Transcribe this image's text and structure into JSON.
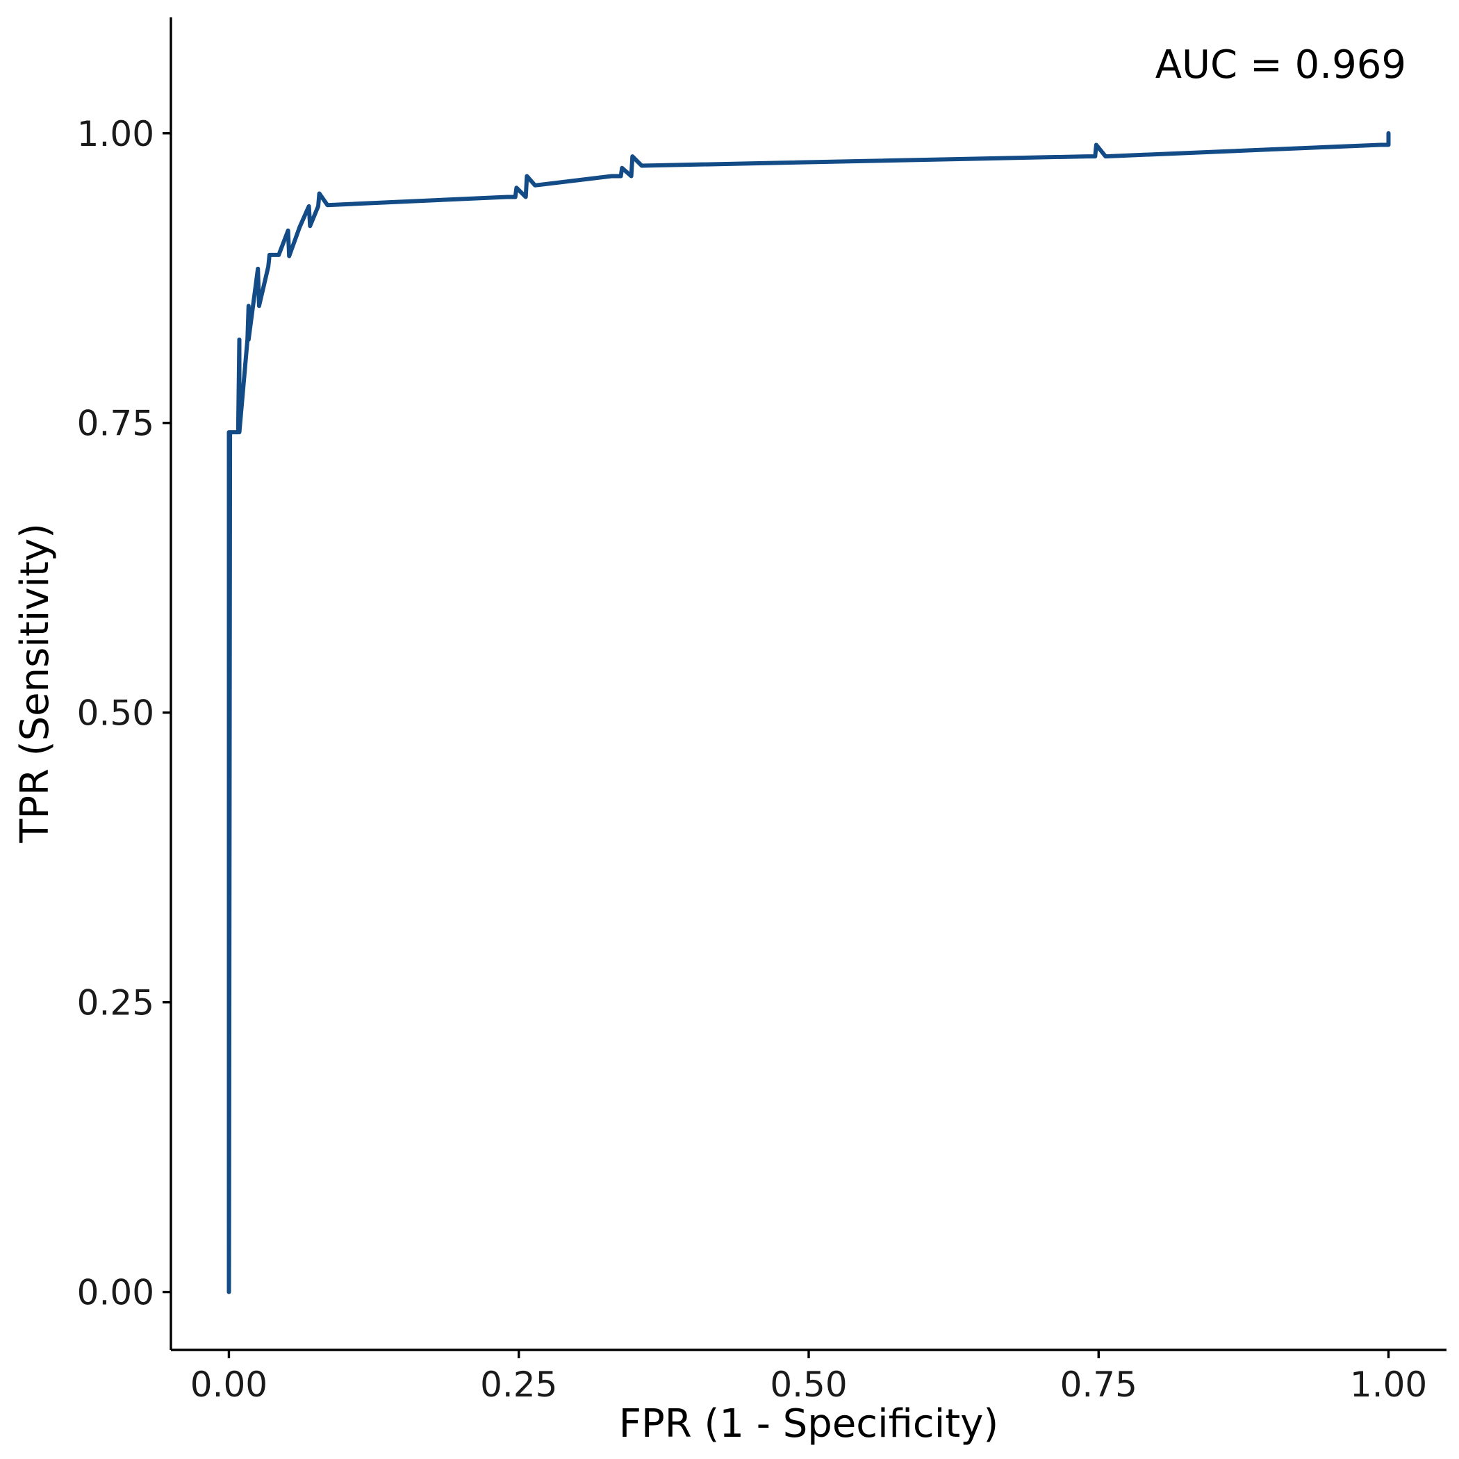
{
  "chart_data": {
    "type": "line",
    "title": "",
    "xlabel": "FPR (1 - Specificity)",
    "ylabel": "TPR (Sensitivity)",
    "xlim": [
      -0.05,
      1.05
    ],
    "ylim": [
      -0.05,
      1.1
    ],
    "x_ticks": [
      0,
      0.25,
      0.5,
      0.75,
      1
    ],
    "x_tick_labels": [
      "0.00",
      "0.25",
      "0.50",
      "0.75",
      "1.00"
    ],
    "y_ticks": [
      0,
      0.25,
      0.5,
      0.75,
      1
    ],
    "y_tick_labels": [
      "0.00",
      "0.25",
      "0.50",
      "0.75",
      "1.00"
    ],
    "grid": false,
    "legend": "none",
    "annotation": "AUC = 0.969",
    "line_color": "#134b86",
    "series": [
      {
        "x": [
          0,
          0,
          0.001,
          0.008,
          0.009,
          0.009,
          0.016,
          0.017,
          0.017,
          0.025,
          0.026,
          0.026,
          0.034,
          0.035,
          0.043,
          0.051,
          0.052,
          0.061,
          0.069,
          0.07,
          0.077,
          0.078,
          0.085,
          0.24,
          0.247,
          0.248,
          0.256,
          0.257,
          0.264,
          0.33,
          0.338,
          0.339,
          0.347,
          0.348,
          0.356,
          0.74,
          0.747,
          0.748,
          0.756,
          0.993,
          1.0,
          1.0
        ],
        "y": [
          0.742,
          0.0,
          0.742,
          0.742,
          0.822,
          0.742,
          0.822,
          0.851,
          0.822,
          0.883,
          0.851,
          0.851,
          0.885,
          0.895,
          0.895,
          0.916,
          0.894,
          0.919,
          0.937,
          0.92,
          0.937,
          0.948,
          0.938,
          0.945,
          0.945,
          0.953,
          0.945,
          0.963,
          0.955,
          0.963,
          0.963,
          0.97,
          0.963,
          0.98,
          0.972,
          0.98,
          0.98,
          0.99,
          0.98,
          0.99,
          0.99,
          1.0
        ]
      }
    ]
  }
}
